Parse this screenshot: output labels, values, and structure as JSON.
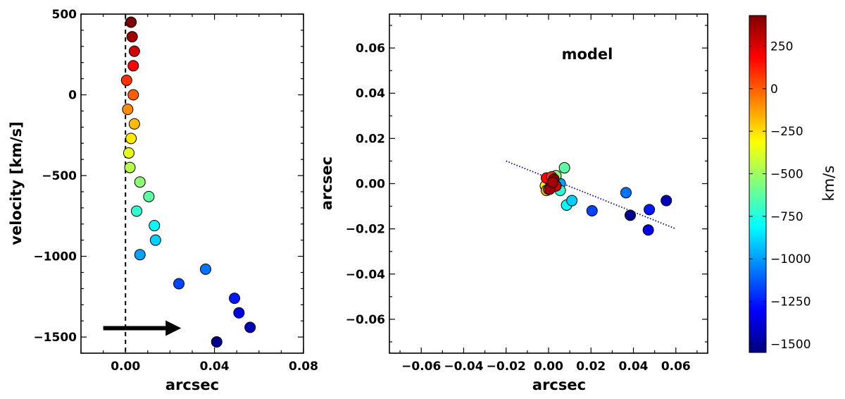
{
  "chart_data": [
    {
      "type": "scatter",
      "panel": "left",
      "xlabel": "arcsec",
      "ylabel": "velocity [km/s]",
      "xlim": [
        -0.02,
        0.08
      ],
      "ylim": [
        -1600,
        500
      ],
      "xticks": [
        0.0,
        0.04,
        0.08
      ],
      "xtick_labels": [
        "0.00",
        "0.04",
        "0.08"
      ],
      "yticks": [
        500,
        0,
        -500,
        -1000,
        -1500
      ],
      "ytick_labels": [
        "500",
        "0",
        "−500",
        "−1000",
        "−1500"
      ],
      "reference_line": {
        "x": 0.0,
        "style": "dashed"
      },
      "arrow": {
        "from": [
          -0.01,
          -1445
        ],
        "to": [
          0.025,
          -1445
        ]
      },
      "points": [
        {
          "x": 0.0025,
          "y": 450
        },
        {
          "x": 0.003,
          "y": 360
        },
        {
          "x": 0.004,
          "y": 270
        },
        {
          "x": 0.0035,
          "y": 180
        },
        {
          "x": 0.0005,
          "y": 90
        },
        {
          "x": 0.0035,
          "y": 0
        },
        {
          "x": 0.001,
          "y": -90
        },
        {
          "x": 0.004,
          "y": -180
        },
        {
          "x": 0.0025,
          "y": -270
        },
        {
          "x": 0.0015,
          "y": -360
        },
        {
          "x": 0.002,
          "y": -450
        },
        {
          "x": 0.0065,
          "y": -540
        },
        {
          "x": 0.0105,
          "y": -630
        },
        {
          "x": 0.005,
          "y": -720
        },
        {
          "x": 0.013,
          "y": -810
        },
        {
          "x": 0.0135,
          "y": -900
        },
        {
          "x": 0.0065,
          "y": -990
        },
        {
          "x": 0.036,
          "y": -1080
        },
        {
          "x": 0.024,
          "y": -1170
        },
        {
          "x": 0.049,
          "y": -1260
        },
        {
          "x": 0.051,
          "y": -1350
        },
        {
          "x": 0.056,
          "y": -1440
        },
        {
          "x": 0.041,
          "y": -1530
        }
      ]
    },
    {
      "type": "scatter",
      "panel": "right",
      "xlabel": "arcsec",
      "ylabel": "arcsec",
      "annotation": "model",
      "xlim": [
        -0.075,
        0.075
      ],
      "ylim": [
        -0.075,
        0.075
      ],
      "xticks": [
        -0.06,
        -0.04,
        -0.02,
        0.0,
        0.02,
        0.04,
        0.06
      ],
      "xtick_labels": [
        "−0.06",
        "−0.04",
        "−0.02",
        "0.00",
        "0.02",
        "0.04",
        "0.06"
      ],
      "yticks": [
        0.06,
        0.04,
        0.02,
        0.0,
        -0.02,
        -0.04,
        -0.06
      ],
      "ytick_labels": [
        "0.06",
        "0.04",
        "0.02",
        "0.00",
        "−0.02",
        "−0.04",
        "−0.06"
      ],
      "line": {
        "x": [
          -0.02,
          0.06
        ],
        "y": [
          0.01,
          -0.02
        ],
        "style": "dotted",
        "color": "#00008b"
      },
      "points": [
        {
          "x": 0.0055,
          "y": 0.0,
          "v": -990
        },
        {
          "x": 0.0075,
          "y": 0.007,
          "v": -630
        },
        {
          "x": 0.0035,
          "y": 0.0035,
          "v": -540
        },
        {
          "x": 0.0055,
          "y": -0.003,
          "v": -720
        },
        {
          "x": 0.0085,
          "y": -0.0095,
          "v": -810
        },
        {
          "x": 0.011,
          "y": -0.0075,
          "v": -900
        },
        {
          "x": 0.0205,
          "y": -0.012,
          "v": -1170
        },
        {
          "x": 0.0365,
          "y": -0.004,
          "v": -1080
        },
        {
          "x": 0.0385,
          "y": -0.014,
          "v": -1530
        },
        {
          "x": 0.0475,
          "y": -0.0115,
          "v": -1260
        },
        {
          "x": 0.047,
          "y": -0.0205,
          "v": -1350
        },
        {
          "x": 0.0555,
          "y": -0.0075,
          "v": -1440
        },
        {
          "x": -0.0015,
          "y": -0.001,
          "v": -270
        },
        {
          "x": -0.001,
          "y": -0.003,
          "v": -180
        },
        {
          "x": 0.0,
          "y": -0.0025,
          "v": -360
        },
        {
          "x": 0.0015,
          "y": 0.0005,
          "v": -450
        },
        {
          "x": 0.0005,
          "y": 0.0015,
          "v": -90
        },
        {
          "x": 0.001,
          "y": -0.0015,
          "v": 0
        },
        {
          "x": 0.0035,
          "y": -0.001,
          "v": 270
        },
        {
          "x": 0.0005,
          "y": -0.0025,
          "v": 360
        },
        {
          "x": -0.001,
          "y": 0.0025,
          "v": 180
        },
        {
          "x": 0.0015,
          "y": 0.003,
          "v": 90
        },
        {
          "x": 0.0025,
          "y": 0.002,
          "v": 450
        },
        {
          "x": 0.002,
          "y": 0.0005,
          "v": 360
        }
      ]
    }
  ],
  "colorbar": {
    "label": "km/s",
    "range": [
      -1550,
      430
    ],
    "colormap": "jet",
    "ticks": [
      250,
      0,
      -250,
      -500,
      -750,
      -1000,
      -1250,
      -1500
    ],
    "tick_labels": [
      "250",
      "0",
      "−250",
      "−500",
      "−750",
      "−1000",
      "−1250",
      "−1500"
    ]
  }
}
